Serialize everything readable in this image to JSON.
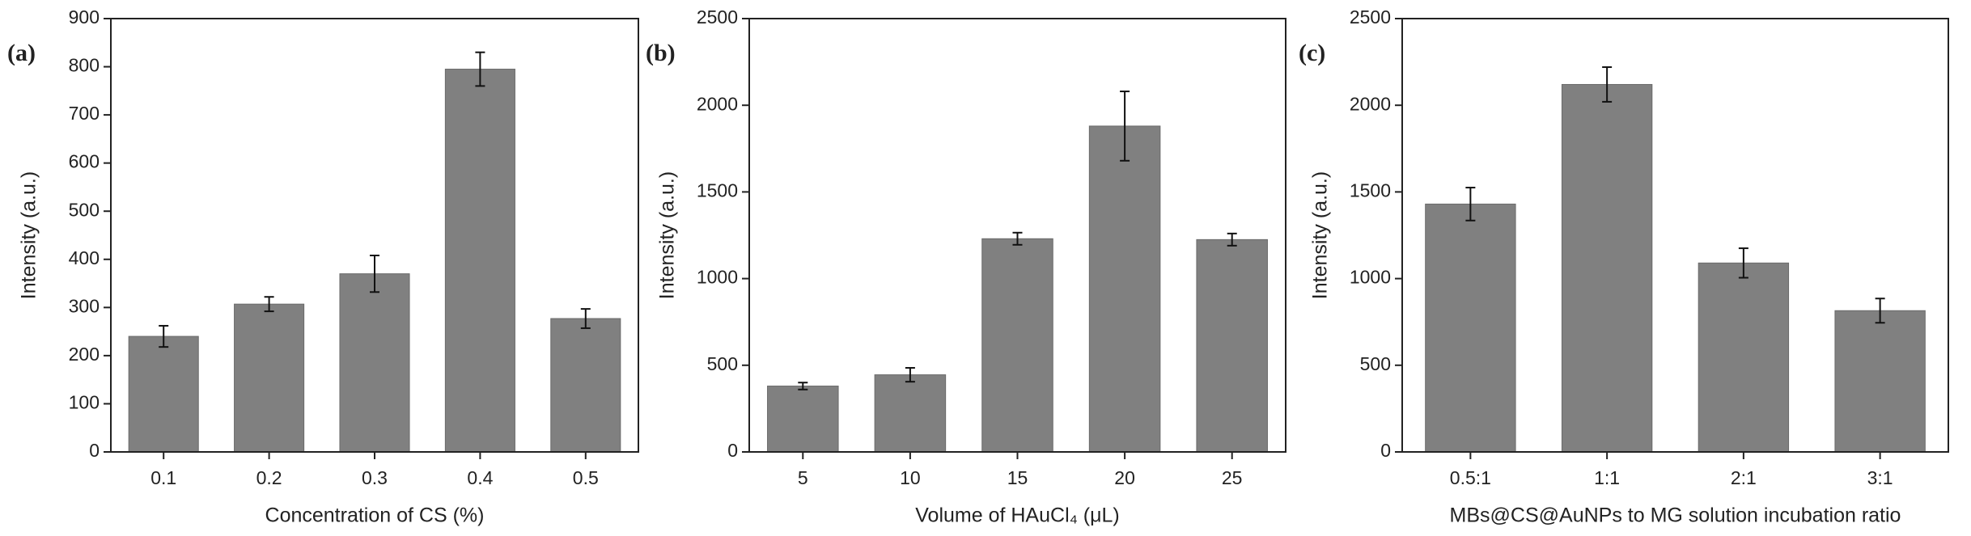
{
  "chart_data": [
    {
      "type": "bar",
      "panel_label": "(a)",
      "x_label": "Concentration of CS (%)",
      "y_label": "Intensity (a.u.)",
      "categories": [
        "0.1",
        "0.2",
        "0.3",
        "0.4",
        "0.5"
      ],
      "values": [
        240,
        307,
        370,
        795,
        277
      ],
      "errors": [
        22,
        15,
        38,
        35,
        20
      ],
      "color": "#808080",
      "ylim": [
        0,
        900
      ],
      "yticks": [
        0,
        100,
        200,
        300,
        400,
        500,
        600,
        700,
        800,
        900
      ]
    },
    {
      "type": "bar",
      "panel_label": "(b)",
      "x_label": "Volume of HAuCl₄ (μL)",
      "y_label": "Intensity (a.u.)",
      "categories": [
        "5",
        "10",
        "15",
        "20",
        "25"
      ],
      "values": [
        380,
        445,
        1230,
        1880,
        1225
      ],
      "errors": [
        20,
        40,
        35,
        200,
        35
      ],
      "color": "#808080",
      "ylim": [
        0,
        2500
      ],
      "yticks": [
        0,
        500,
        1000,
        1500,
        2000,
        2500
      ]
    },
    {
      "type": "bar",
      "panel_label": "(c)",
      "x_label": "MBs@CS@AuNPs to MG solution incubation ratio",
      "y_label": "Intensity (a.u.)",
      "categories": [
        "0.5:1",
        "1:1",
        "2:1",
        "3:1"
      ],
      "values": [
        1430,
        2120,
        1090,
        815
      ],
      "errors": [
        95,
        100,
        85,
        70
      ],
      "color": "#808080",
      "ylim": [
        0,
        2500
      ],
      "yticks": [
        0,
        500,
        1000,
        1500,
        2000,
        2500
      ]
    }
  ]
}
